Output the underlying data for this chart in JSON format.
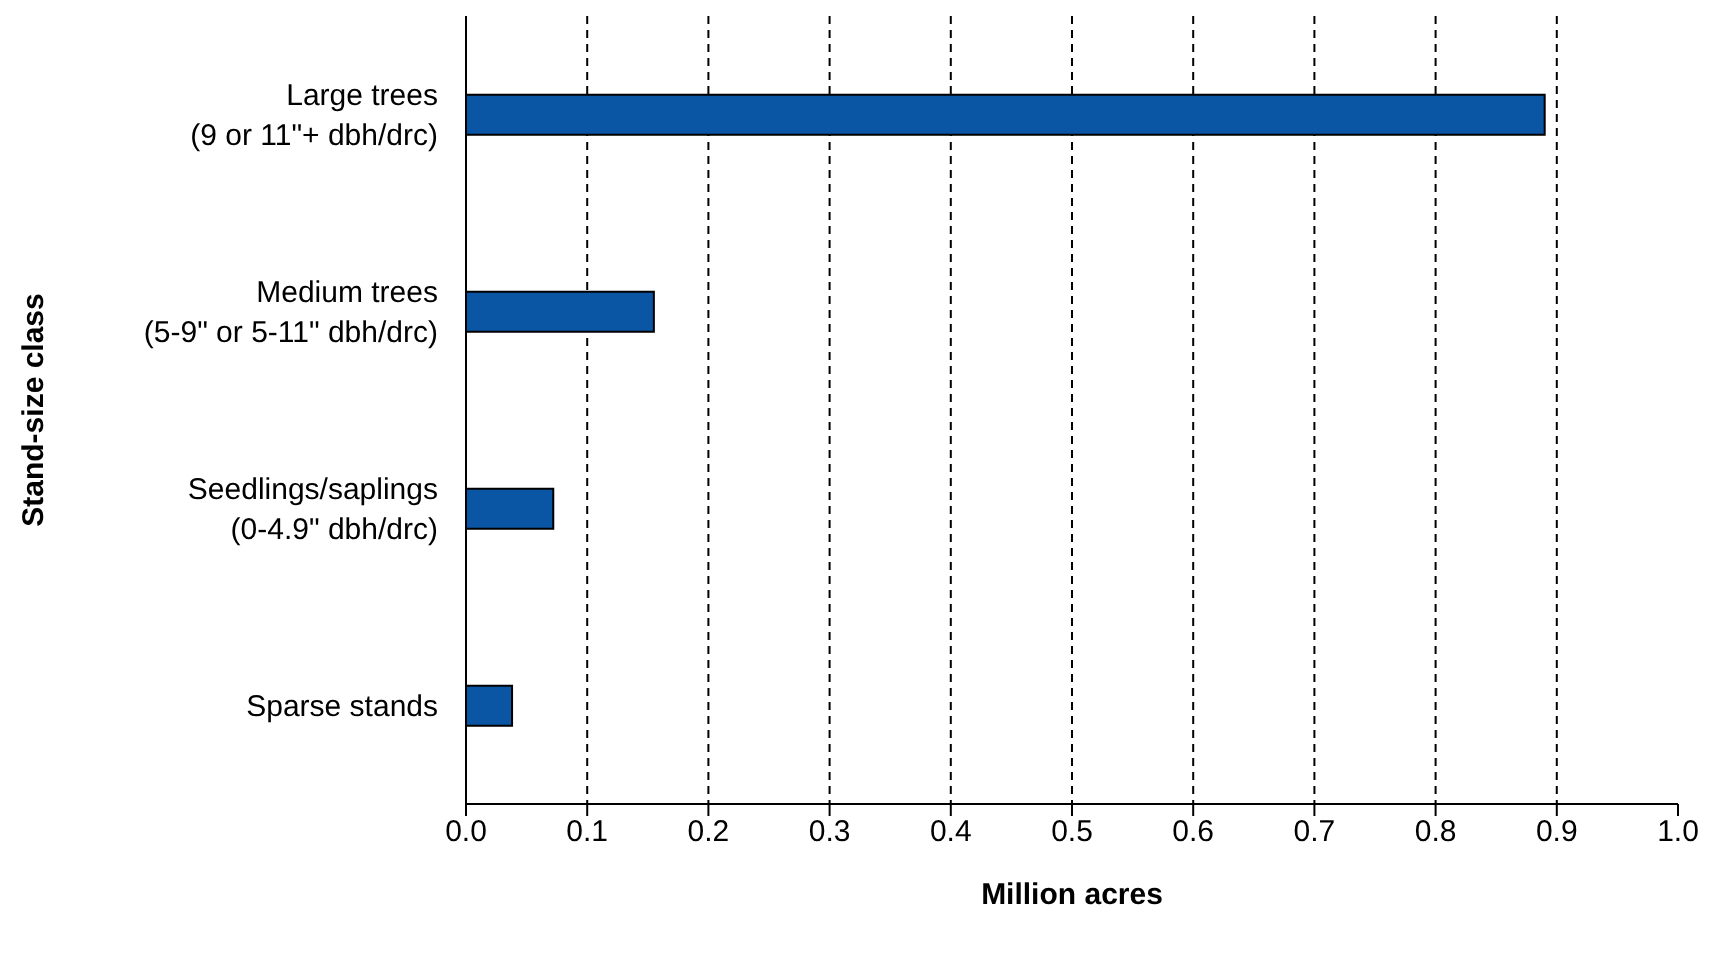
{
  "chart_data": {
    "type": "bar",
    "orientation": "horizontal",
    "xlabel": "Million acres",
    "ylabel": "Stand-size class",
    "categories": [
      "Large trees\n(9 or 11\"+ dbh/drc)",
      "Medium trees\n(5-9\" or 5-11\" dbh/drc)",
      "Seedlings/saplings\n(0-4.9\" dbh/drc)",
      "Sparse stands"
    ],
    "values": [
      0.89,
      0.155,
      0.072,
      0.038
    ],
    "color": "#0a56a5",
    "xlim": [
      0,
      1
    ],
    "xticks": [
      {
        "value": 0,
        "label": "0.0"
      },
      {
        "value": 0.1,
        "label": "0.1"
      },
      {
        "value": 0.2,
        "label": "0.2"
      },
      {
        "value": 0.3,
        "label": "0.3"
      },
      {
        "value": 0.4,
        "label": "0.4"
      },
      {
        "value": 0.5,
        "label": "0.5"
      },
      {
        "value": 0.6,
        "label": "0.6"
      },
      {
        "value": 0.7,
        "label": "0.7"
      },
      {
        "value": 0.8,
        "label": "0.8"
      },
      {
        "value": 0.9,
        "label": "0.9"
      },
      {
        "value": 1,
        "label": "1.0"
      }
    ],
    "grid": "x"
  }
}
